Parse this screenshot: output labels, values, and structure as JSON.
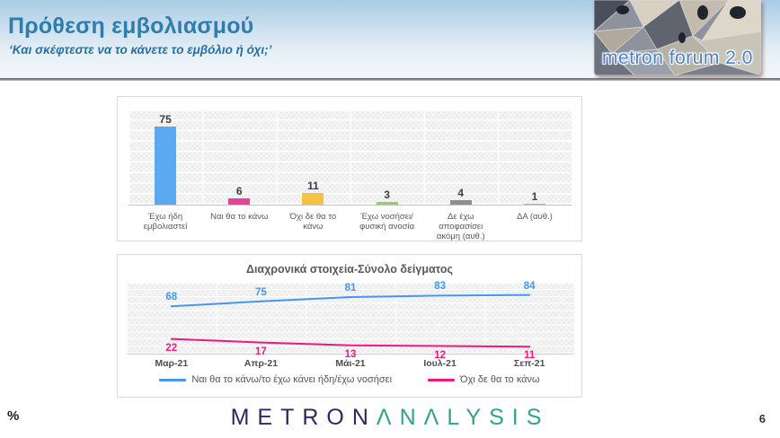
{
  "header": {
    "title": "Πρόθεση εμβολιασμού",
    "subtitle": "‘Και σκέφτεστε να το κάνετε το εμβόλιο ή όχι;’",
    "logo_text": "metron forum 2.0"
  },
  "colors": {
    "title_blue": "#2E7DAB",
    "line_blue": "#4496EF",
    "line_pink": "#ED1A7E",
    "brand_navy": "#2B2A5E",
    "brand_teal": "#36A286"
  },
  "chart_data": [
    {
      "type": "bar",
      "categories": [
        "Έχω ήδη εμβολιαστεί",
        "Ναι θα το κάνω",
        "Όχι δε θα το κάνω",
        "Έχω νοσήσει/φυσική ανοσία",
        "Δε έχω αποφασίσει ακόμη (αυθ.)",
        "ΔΑ (αυθ.)"
      ],
      "values": [
        75,
        6,
        11,
        3,
        4,
        1
      ],
      "bar_colors": [
        "#5BA9F0",
        "#E8439B",
        "#F6C243",
        "#95D355",
        "#8F8F8F",
        "#95D355"
      ],
      "title": "",
      "xlabel": "",
      "ylabel": "",
      "ylim": [
        0,
        90
      ],
      "grid": true
    },
    {
      "type": "line",
      "title": "Διαχρονικά στοιχεία-Σύνολο δείγματος",
      "categories": [
        "Μαρ-21",
        "Απρ-21",
        "Μάι-21",
        "Ιουλ-21",
        "Σεπ-21"
      ],
      "series": [
        {
          "name": "Ναι θα το κάνω/το έχω κάνει ήδη/έχω νοσήσει",
          "values": [
            68,
            75,
            81,
            83,
            84
          ],
          "color": "#4496EF"
        },
        {
          "name": "Όχι δε θα το κάνω",
          "values": [
            22,
            17,
            13,
            12,
            11
          ],
          "color": "#ED1A7E"
        }
      ],
      "xlabel": "",
      "ylabel": "",
      "ylim": [
        0,
        100
      ],
      "grid": true,
      "legend_position": "bottom"
    }
  ],
  "footer": {
    "percent_label": "%",
    "brand_left": "METRON",
    "brand_right": "ΛNΛLYSIS",
    "page_number": "6"
  }
}
